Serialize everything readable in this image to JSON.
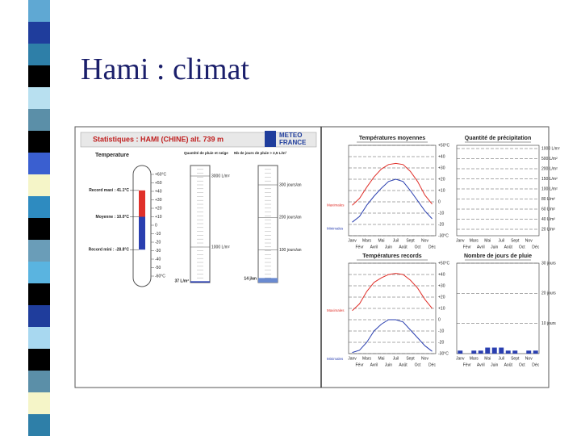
{
  "title": "Hami : climat",
  "figure": {
    "header": "Statistiques : HAMI (CHINE)  alt. 739 m",
    "logo": [
      "METEO",
      "FRANCE"
    ],
    "left": {
      "temperature_title": "Temperature",
      "rain_title": "Quantité de pluie et neige",
      "days_title": "Nb de jours de pluie > 2,5 L/m²",
      "scale": [
        {
          "value": 60,
          "label": "+60°C"
        },
        {
          "value": 50,
          "label": "+50"
        },
        {
          "value": 40,
          "label": "+40"
        },
        {
          "value": 30,
          "label": "+30"
        },
        {
          "value": 20,
          "label": "+20"
        },
        {
          "value": 10,
          "label": "+10"
        },
        0,
        -10,
        -20,
        -30,
        -40,
        -50,
        {
          "value": -60,
          "label": "-60°C"
        }
      ],
      "record_max": {
        "value": 41.1,
        "label": "Record maxi : 41.1°C"
      },
      "mean": {
        "value": 10.0,
        "label": "Moyenne : 10.0°C"
      },
      "record_min": {
        "value": -28.8,
        "label": "Record mini : -28.8°C"
      },
      "rain_scale": [
        {
          "value": 3000,
          "label": "3000 L/m²"
        },
        {
          "value": 1000,
          "label": "1000 L/m²"
        }
      ],
      "rain_total": {
        "value": 37,
        "label": "37 L/m²"
      },
      "days_scale": [
        {
          "value": 300,
          "label": "300 jours/an"
        },
        {
          "value": 200,
          "label": "200 jours/an"
        },
        {
          "value": 100,
          "label": "100 jours/an"
        }
      ],
      "days_total": {
        "value": 14,
        "label": "14 j/an"
      }
    },
    "charts": [
      {
        "type": "line",
        "title": "Températures moyennes",
        "categories": [
          "Janv",
          "Févr",
          "Mars",
          "Avril",
          "Mai",
          "Juin",
          "Juil",
          "Août",
          "Sept",
          "Oct",
          "Nov",
          "Déc"
        ],
        "ylim": [
          -30,
          50
        ],
        "yticks": [
          {
            "value": 50,
            "label": "+50°C"
          },
          {
            "value": 40,
            "label": "+40"
          },
          {
            "value": 30,
            "label": "+30"
          },
          {
            "value": 20,
            "label": "+20"
          },
          {
            "value": 10,
            "label": "+10"
          },
          0,
          -10,
          -20,
          {
            "value": -30,
            "label": "-30°C"
          }
        ],
        "series": [
          {
            "name": "Maximales",
            "color": "#e0302a",
            "values": [
              -3,
              3,
              13,
              22,
              29,
              33,
              34,
              33,
              27,
              18,
              6,
              -2
            ]
          },
          {
            "name": "Minimales",
            "color": "#2a3fb0",
            "values": [
              -18,
              -13,
              -3,
              5,
              12,
              18,
              20,
              18,
              10,
              1,
              -8,
              -15
            ]
          }
        ]
      },
      {
        "type": "bar",
        "title": "Quantité de précipitation",
        "categories": [
          "Janv",
          "Févr",
          "Mars",
          "Avril",
          "Mai",
          "Juin",
          "Juil",
          "Août",
          "Sept",
          "Oct",
          "Nov",
          "Déc"
        ],
        "yticks": [
          {
            "value": 1000,
            "label": "1000 L/m²"
          },
          {
            "value": 500,
            "label": "500 L/m²"
          },
          {
            "value": 200,
            "label": "200 L/m²"
          },
          {
            "value": 150,
            "label": "150 L/m²"
          },
          {
            "value": 100,
            "label": "100 L/m²"
          },
          {
            "value": 80,
            "label": "80 L/m²"
          },
          {
            "value": 60,
            "label": "60 L/m²"
          },
          {
            "value": 40,
            "label": "40 L/m²"
          },
          {
            "value": 20,
            "label": "20 L/m²"
          }
        ]
      },
      {
        "type": "line",
        "title": "Températures records",
        "categories": [
          "Janv",
          "Févr",
          "Mars",
          "Avril",
          "Mai",
          "Juin",
          "Juil",
          "Août",
          "Sept",
          "Oct",
          "Nov",
          "Déc"
        ],
        "ylim": [
          -30,
          50
        ],
        "yticks": [
          {
            "value": 50,
            "label": "+50°C"
          },
          {
            "value": 40,
            "label": "+40"
          },
          {
            "value": 30,
            "label": "+30"
          },
          {
            "value": 20,
            "label": "+20"
          },
          {
            "value": 10,
            "label": "+10"
          },
          0,
          -10,
          -20,
          {
            "value": -30,
            "label": "-30°C"
          }
        ],
        "series": [
          {
            "name": "Maximales",
            "color": "#e0302a",
            "values": [
              8,
              14,
              25,
              33,
              37,
              40,
              41,
              40,
              35,
              28,
              18,
              10
            ]
          },
          {
            "name": "Minimales",
            "color": "#2a3fb0",
            "values": [
              -29,
              -27,
              -20,
              -10,
              -4,
              0,
              0,
              -2,
              -9,
              -16,
              -23,
              -28
            ]
          }
        ]
      },
      {
        "type": "bar",
        "title": "Nombre de jours de pluie",
        "categories": [
          "Janv",
          "Févr",
          "Mars",
          "Avril",
          "Mai",
          "Juin",
          "Juil",
          "Août",
          "Sept",
          "Oct",
          "Nov",
          "Déc"
        ],
        "ylim": [
          0,
          30
        ],
        "yticks": [
          {
            "value": 30,
            "label": "30 jours"
          },
          {
            "value": 20,
            "label": "20 jours"
          },
          {
            "value": 10,
            "label": "10 jours"
          }
        ],
        "series": [
          {
            "name": "Jours",
            "color": "#2a3fb0",
            "values": [
              1,
              0,
              1,
              1,
              2,
              2,
              2,
              1,
              1,
              0,
              1,
              1
            ]
          }
        ]
      }
    ]
  }
}
